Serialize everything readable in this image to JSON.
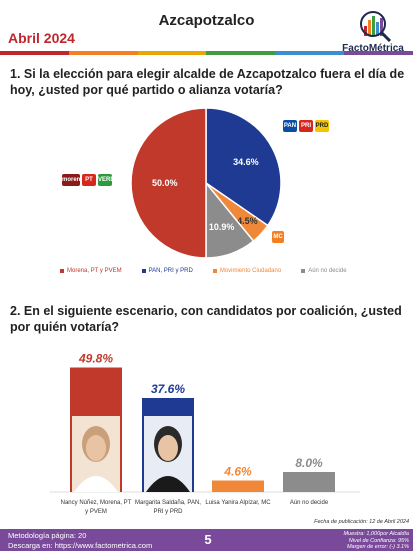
{
  "header": {
    "title": "Azcapotzalco",
    "date": "Abril 2024",
    "brand": "FactoMétrica",
    "strip_colors": [
      "#c0272d",
      "#f47f20",
      "#e9a500",
      "#3f9c3f",
      "#3a8fd0",
      "#7a4a9a"
    ]
  },
  "question1": "1. Si la elección para elegir alcalde de Azcapotzalco fuera el día de hoy, ¿usted por qué partido o alianza votaría?",
  "question2": "2. En el siguiente escenario, con candidatos por coalición, ¿usted por quién votaría?",
  "party_logos": {
    "morena_pt_verde": [
      "morena",
      "PT",
      "VERDE"
    ],
    "pan_pri_prd": [
      "PAN",
      "PRI",
      "PRD"
    ],
    "mc": "MC"
  },
  "chart_data": [
    {
      "type": "pie",
      "categories": [
        "Morena, PT y PVEM",
        "PAN, PRI y PRD",
        "Movimiento Ciudadano",
        "Aún no decide"
      ],
      "values": [
        50.0,
        34.6,
        4.5,
        10.9
      ],
      "labels": [
        "50.0%",
        "34.6%",
        "4.5%",
        "10.9%"
      ],
      "colors": [
        "#c0392b",
        "#1f3a93",
        "#f0883a",
        "#8c8c8c"
      ],
      "legend_position": "bottom"
    },
    {
      "type": "bar",
      "categories": [
        "Nancy Núñez, Morena, PT y PVEM",
        "Margarita Saldaña, PAN, PRI y PRD",
        "Luisa Yanira Alpízar, MC",
        "Aún no decide"
      ],
      "category_lines": [
        [
          "Nancy Núñez, Morena, PT",
          "y PVEM"
        ],
        [
          "Margarita Saldaña, PAN,",
          "PRI y PRD"
        ],
        [
          "Luisa Yanira Alpízar, MC"
        ],
        [
          "Aún no decide"
        ]
      ],
      "values": [
        49.8,
        37.6,
        4.6,
        8.0
      ],
      "labels": [
        "49.8%",
        "37.6%",
        "4.6%",
        "8.0%"
      ],
      "colors": [
        "#c0392b",
        "#1f3a93",
        "#f0883a",
        "#8c8c8c"
      ]
    }
  ],
  "footer": {
    "methodology": "Metodología página: 20",
    "download": "Descarga en: https://www.factometrica.com",
    "page": "5",
    "publication": "Fecha de publicación: 12 de Abril 2024",
    "sample": "Muestra: 1,000por Alcaldía",
    "confidence": "Nivel de Confianza: 95%",
    "error": "Margen de error: (-) 3.1%"
  }
}
